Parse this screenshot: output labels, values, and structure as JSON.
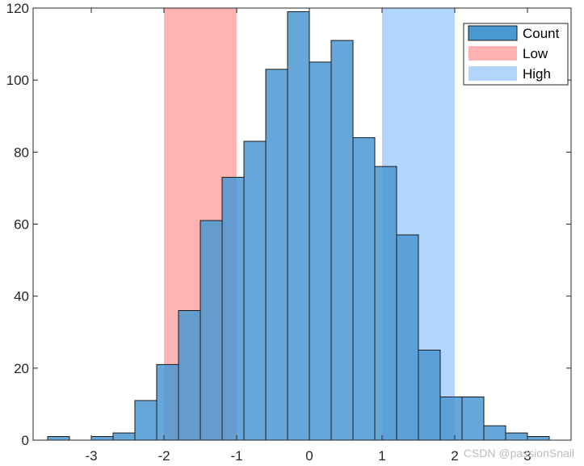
{
  "chart_data": {
    "type": "bar",
    "subtype": "histogram",
    "bin_width": 0.3,
    "bins": [
      {
        "start": -3.6,
        "end": -3.3,
        "count": 1
      },
      {
        "start": -3.3,
        "end": -3.0,
        "count": 0
      },
      {
        "start": -3.0,
        "end": -2.7,
        "count": 1
      },
      {
        "start": -2.7,
        "end": -2.4,
        "count": 2
      },
      {
        "start": -2.4,
        "end": -2.1,
        "count": 11
      },
      {
        "start": -2.1,
        "end": -1.8,
        "count": 21
      },
      {
        "start": -1.8,
        "end": -1.5,
        "count": 36
      },
      {
        "start": -1.5,
        "end": -1.2,
        "count": 61
      },
      {
        "start": -1.2,
        "end": -0.9,
        "count": 73
      },
      {
        "start": -0.9,
        "end": -0.6,
        "count": 83
      },
      {
        "start": -0.6,
        "end": -0.3,
        "count": 103
      },
      {
        "start": -0.3,
        "end": 0.0,
        "count": 119
      },
      {
        "start": 0.0,
        "end": 0.3,
        "count": 105
      },
      {
        "start": 0.3,
        "end": 0.6,
        "count": 111
      },
      {
        "start": 0.6,
        "end": 0.9,
        "count": 84
      },
      {
        "start": 0.9,
        "end": 1.2,
        "count": 76
      },
      {
        "start": 1.2,
        "end": 1.5,
        "count": 57
      },
      {
        "start": 1.5,
        "end": 1.8,
        "count": 25
      },
      {
        "start": 1.8,
        "end": 2.1,
        "count": 12
      },
      {
        "start": 2.1,
        "end": 2.4,
        "count": 12
      },
      {
        "start": 2.4,
        "end": 2.7,
        "count": 4
      },
      {
        "start": 2.7,
        "end": 3.0,
        "count": 2
      },
      {
        "start": 3.0,
        "end": 3.3,
        "count": 1
      }
    ],
    "regions": [
      {
        "name": "Low",
        "x_start": -2,
        "x_end": -1,
        "color": "#ff9999",
        "opacity": 0.75
      },
      {
        "name": "High",
        "x_start": 1,
        "x_end": 2,
        "color": "#99c8ff",
        "opacity": 0.75
      }
    ],
    "series_name": "Count",
    "bar_color": "#4a98d2",
    "bar_edge_color": "#1a1a1a",
    "xlim": [
      -3.8,
      3.6
    ],
    "ylim": [
      0,
      120
    ],
    "x_ticks": [
      -3,
      -2,
      -1,
      0,
      1,
      2,
      3
    ],
    "x_tick_labels": [
      "-3",
      "-2",
      "-1",
      "0",
      "1",
      "2",
      "3"
    ],
    "y_ticks": [
      0,
      20,
      40,
      60,
      80,
      100,
      120
    ],
    "y_tick_labels": [
      "0",
      "20",
      "40",
      "60",
      "80",
      "100",
      "120"
    ],
    "legend": {
      "position": "top-right",
      "entries": [
        {
          "label": "Count",
          "color": "#4a98d2",
          "edge": "#1a1a1a"
        },
        {
          "label": "Low",
          "color": "#ffb0b0",
          "edge": "none"
        },
        {
          "label": "High",
          "color": "#b3d5fa",
          "edge": "none"
        }
      ]
    },
    "grid": false,
    "title": "",
    "xlabel": "",
    "ylabel": ""
  },
  "watermark": "CSDN @passionSnail"
}
